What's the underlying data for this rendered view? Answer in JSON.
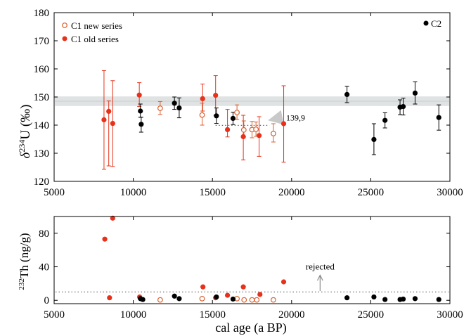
{
  "colors": {
    "old_series": "#e8311a",
    "new_series_edge": "#d9602f",
    "c2": "#000000",
    "band": "#dfe3e3",
    "dotted": "#666666",
    "annotation": "#888888"
  },
  "chart_data": [
    {
      "type": "scatter",
      "panel": "top",
      "ylabel": "δ234U (‰)",
      "ylabel_parts": {
        "delta": "δ",
        "sup": "234",
        "u": "U",
        "unit": "(‰)"
      },
      "xlabel": "",
      "xlim": [
        5000,
        30000
      ],
      "ylim": [
        120,
        180
      ],
      "x_ticks": [
        "5000",
        "10000",
        "15000",
        "20000",
        "25000",
        "30000"
      ],
      "y_ticks": [
        "120",
        "130",
        "140",
        "150",
        "160",
        "170",
        "180"
      ],
      "grid": false,
      "reference_band": {
        "ymin": 146.8,
        "ymax": 150.2,
        "line": 148.5
      },
      "reference_line": {
        "x_from": 15200,
        "x_to": 18600,
        "y": 139.9,
        "label": "139,9",
        "arrow_tail": [
          19300,
          142.6
        ],
        "arrow_head": [
          18600,
          141.8
        ]
      },
      "legend": {
        "position": "top-left",
        "items": [
          "C1 new series",
          "C1 old series"
        ],
        "right_item": "C2"
      },
      "series": [
        {
          "name": "C1 old series",
          "marker": "filled-red",
          "points": [
            {
              "x": 8150,
              "y": 141.9,
              "err": [
                124.3,
                159.4
              ]
            },
            {
              "x": 8450,
              "y": 144.9,
              "err": [
                125.5,
                148.6
              ]
            },
            {
              "x": 8700,
              "y": 140.6,
              "err": [
                125.3,
                155.8
              ]
            },
            {
              "x": 10380,
              "y": 150.7,
              "err": [
                146.6,
                155.1
              ]
            },
            {
              "x": 14380,
              "y": 149.4,
              "err": [
                145.0,
                154.6
              ]
            },
            {
              "x": 15200,
              "y": 150.6,
              "err": [
                143.5,
                157.6
              ]
            },
            {
              "x": 15950,
              "y": 138.4,
              "err": [
                135.8,
                145.6
              ]
            },
            {
              "x": 16950,
              "y": 135.9,
              "err": [
                127.6,
                143.5
              ]
            },
            {
              "x": 17950,
              "y": 136.3,
              "err": [
                128.9,
                143.0
              ]
            },
            {
              "x": 19500,
              "y": 140.5,
              "err": [
                126.8,
                154.0
              ]
            }
          ]
        },
        {
          "name": "C1 new series",
          "marker": "open-red",
          "points": [
            {
              "x": 11700,
              "y": 146.0,
              "err": [
                143.8,
                148.4
              ]
            },
            {
              "x": 14350,
              "y": 143.6,
              "err": [
                140.0,
                147.8
              ]
            },
            {
              "x": 16550,
              "y": 144.5,
              "err": [
                142.0,
                147.2
              ]
            },
            {
              "x": 16980,
              "y": 138.3,
              "err": [
                135.8,
                141.5
              ]
            },
            {
              "x": 17500,
              "y": 138.4,
              "err": [
                135.5,
                141.3
              ]
            },
            {
              "x": 17750,
              "y": 138.5,
              "err": [
                136.0,
                141.1
              ]
            },
            {
              "x": 18850,
              "y": 137.0,
              "err": [
                134.0,
                140.5
              ]
            }
          ]
        },
        {
          "name": "C2",
          "marker": "filled-black",
          "points": [
            {
              "x": 10450,
              "y": 145.0,
              "err": [
                142.8,
                147.5
              ]
            },
            {
              "x": 10500,
              "y": 140.3,
              "err": [
                137.5,
                142.8
              ]
            },
            {
              "x": 12600,
              "y": 147.8,
              "err": [
                145.6,
                150.0
              ]
            },
            {
              "x": 12900,
              "y": 146.1,
              "err": [
                142.6,
                149.7
              ]
            },
            {
              "x": 15250,
              "y": 143.3,
              "err": [
                140.6,
                146.1
              ]
            },
            {
              "x": 16300,
              "y": 142.4,
              "err": [
                140.2,
                144.6
              ]
            },
            {
              "x": 23500,
              "y": 150.9,
              "err": [
                148.0,
                153.8
              ]
            },
            {
              "x": 25200,
              "y": 134.9,
              "err": [
                129.5,
                140.5
              ]
            },
            {
              "x": 25900,
              "y": 141.7,
              "err": [
                139.0,
                144.4
              ]
            },
            {
              "x": 26850,
              "y": 146.4,
              "err": [
                143.7,
                149.0
              ]
            },
            {
              "x": 27050,
              "y": 146.6,
              "err": [
                143.6,
                149.6
              ]
            },
            {
              "x": 27800,
              "y": 151.4,
              "err": [
                147.5,
                155.4
              ]
            },
            {
              "x": 29300,
              "y": 142.7,
              "err": [
                138.2,
                147.2
              ]
            }
          ]
        }
      ]
    },
    {
      "type": "scatter",
      "panel": "bottom",
      "ylabel": "232Th (ng/g)",
      "ylabel_parts": {
        "sup": "232",
        "main": "Th (ng/g)"
      },
      "xlabel": "cal age (a BP)",
      "xlim": [
        5000,
        30000
      ],
      "ylim": [
        -4,
        100
      ],
      "x_ticks": [
        "5000",
        "10000",
        "15000",
        "20000",
        "25000",
        "30000"
      ],
      "y_ticks": [
        "0",
        "40",
        "80"
      ],
      "grid": false,
      "threshold": {
        "y": 10,
        "label": "rejected",
        "arrow_x": 21800,
        "arrow_from": 11,
        "arrow_to": 30
      },
      "series": [
        {
          "name": "C1 old series",
          "marker": "filled-red",
          "points": [
            {
              "x": 8200,
              "y": 73
            },
            {
              "x": 8700,
              "y": 98
            },
            {
              "x": 8500,
              "y": 3
            },
            {
              "x": 10400,
              "y": 4
            },
            {
              "x": 14400,
              "y": 16
            },
            {
              "x": 15200,
              "y": 3
            },
            {
              "x": 15950,
              "y": 6
            },
            {
              "x": 16950,
              "y": 16
            },
            {
              "x": 18000,
              "y": 7
            },
            {
              "x": 19500,
              "y": 22
            }
          ]
        },
        {
          "name": "C1 new series",
          "marker": "open-red",
          "points": [
            {
              "x": 11700,
              "y": 0.5
            },
            {
              "x": 14350,
              "y": 2
            },
            {
              "x": 16550,
              "y": 2
            },
            {
              "x": 17000,
              "y": 0.5
            },
            {
              "x": 17500,
              "y": 0.5
            },
            {
              "x": 17800,
              "y": 0.5
            },
            {
              "x": 18850,
              "y": 0.5
            }
          ]
        },
        {
          "name": "C2",
          "marker": "filled-black",
          "points": [
            {
              "x": 10450,
              "y": 2
            },
            {
              "x": 10600,
              "y": 1
            },
            {
              "x": 12600,
              "y": 5
            },
            {
              "x": 12900,
              "y": 2
            },
            {
              "x": 15250,
              "y": 4
            },
            {
              "x": 16300,
              "y": 1.5
            },
            {
              "x": 23500,
              "y": 3
            },
            {
              "x": 25200,
              "y": 4
            },
            {
              "x": 25900,
              "y": 1
            },
            {
              "x": 26850,
              "y": 1
            },
            {
              "x": 27050,
              "y": 1.5
            },
            {
              "x": 27800,
              "y": 2
            },
            {
              "x": 29300,
              "y": 1
            }
          ]
        }
      ]
    }
  ]
}
